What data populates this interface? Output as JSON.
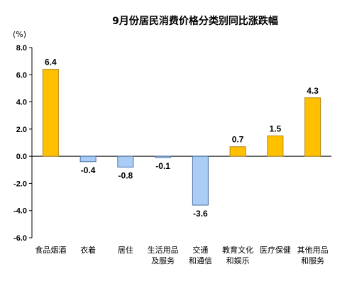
{
  "chart_data": {
    "type": "bar",
    "title": "9月份居民消费价格分类别同比涨跌幅",
    "unit": "(%)",
    "xlabel": "",
    "ylabel": "",
    "ylim": [
      -6.0,
      8.0
    ],
    "yticks": [
      "8.0",
      "6.0",
      "4.0",
      "2.0",
      "0.0",
      "-2.0",
      "-4.0",
      "-6.0"
    ],
    "ytick_values": [
      8,
      6,
      4,
      2,
      0,
      -2,
      -4,
      -6
    ],
    "grid": false,
    "legend": "none",
    "categories": [
      [
        "食品烟酒"
      ],
      [
        "衣着"
      ],
      [
        "居住"
      ],
      [
        "生活用品",
        "及服务"
      ],
      [
        "交通",
        "和通信"
      ],
      [
        "教育文化",
        "和娱乐"
      ],
      [
        "医疗保健"
      ],
      [
        "其他用品",
        "和服务"
      ]
    ],
    "values": [
      6.4,
      -0.4,
      -0.8,
      -0.1,
      -3.6,
      0.7,
      1.5,
      4.3
    ],
    "value_labels": [
      "6.4",
      "-0.4",
      "-0.8",
      "-0.1",
      "-3.6",
      "0.7",
      "1.5",
      "4.3"
    ],
    "colors": {
      "positive_fill": "#FFC000",
      "positive_stroke": "#B8860B",
      "negative_fill": "#A9CDF5",
      "negative_stroke": "#4A6FA5",
      "axis": "#000000"
    }
  }
}
